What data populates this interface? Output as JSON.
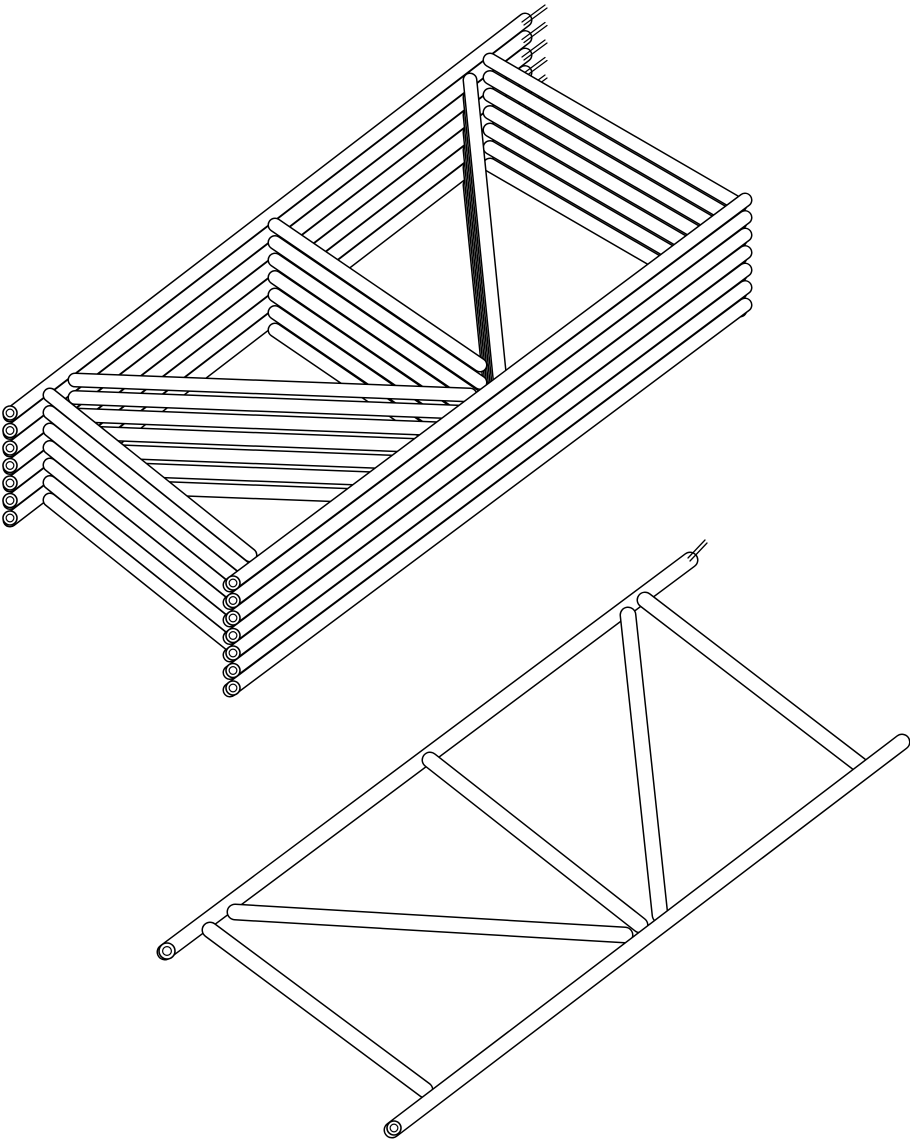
{
  "drawing": {
    "subject": "scaffold-frame-line-drawing",
    "stroke_color": "#000000",
    "background_color": "#ffffff",
    "stacked_frame_count": 7,
    "single_frame_count": 1
  }
}
